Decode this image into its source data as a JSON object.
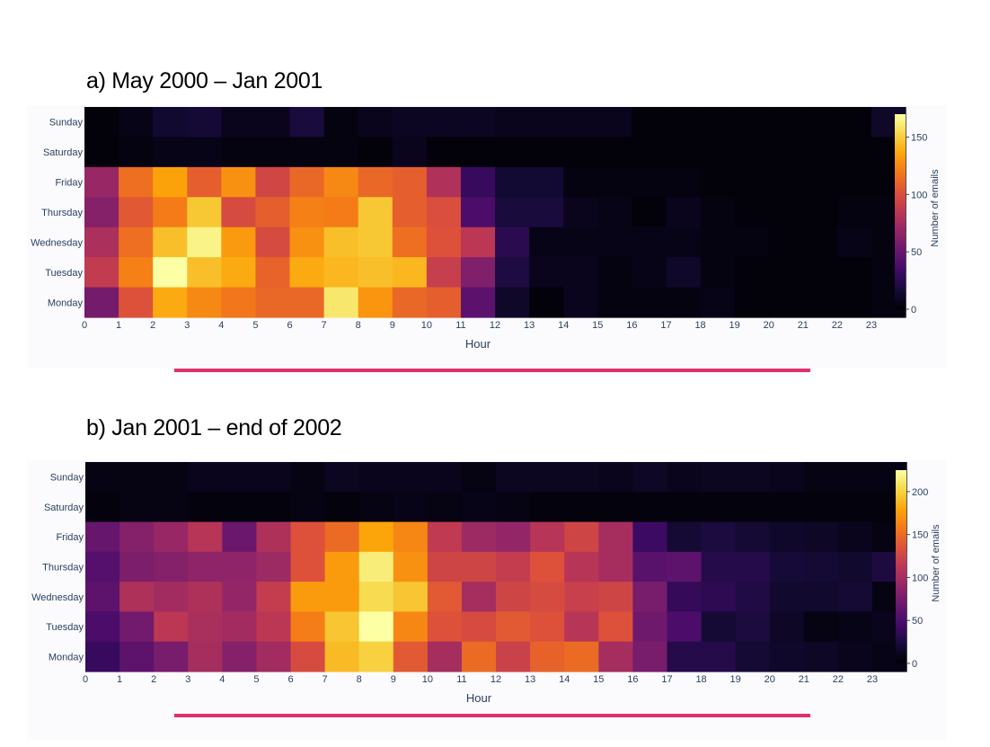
{
  "chart_data": [
    {
      "type": "heatmap",
      "title": "a) May 2000 – Jan 2001",
      "xlabel": "Hour",
      "colorbar_title": "Number of emails",
      "colorscale": "inferno",
      "zmin": 0,
      "zmax": 170,
      "colorbar_ticks": [
        0,
        50,
        100,
        150
      ],
      "x_ticks": [
        "0",
        "1",
        "2",
        "3",
        "4",
        "5",
        "6",
        "7",
        "8",
        "9",
        "10",
        "11",
        "12",
        "13",
        "14",
        "15",
        "16",
        "17",
        "18",
        "19",
        "20",
        "21",
        "22",
        "23"
      ],
      "y_categories": [
        "Sunday",
        "Saturday",
        "Friday",
        "Thursday",
        "Wednesday",
        "Tuesday",
        "Monday"
      ],
      "z": [
        [
          2,
          6,
          14,
          16,
          8,
          8,
          18,
          4,
          8,
          10,
          10,
          10,
          8,
          8,
          8,
          8,
          2,
          2,
          2,
          2,
          2,
          2,
          2,
          12
        ],
        [
          2,
          4,
          6,
          6,
          4,
          4,
          4,
          4,
          2,
          8,
          2,
          2,
          2,
          2,
          2,
          2,
          2,
          2,
          2,
          2,
          2,
          2,
          2,
          2
        ],
        [
          70,
          115,
          135,
          108,
          128,
          95,
          112,
          125,
          112,
          108,
          80,
          30,
          15,
          15,
          4,
          4,
          4,
          4,
          2,
          2,
          2,
          2,
          2,
          2
        ],
        [
          62,
          105,
          120,
          148,
          98,
          108,
          122,
          120,
          148,
          108,
          100,
          38,
          18,
          18,
          8,
          6,
          2,
          8,
          4,
          2,
          2,
          2,
          4,
          4
        ],
        [
          78,
          115,
          145,
          165,
          132,
          98,
          128,
          145,
          148,
          115,
          102,
          85,
          25,
          6,
          6,
          6,
          6,
          6,
          4,
          4,
          2,
          2,
          6,
          4
        ],
        [
          88,
          122,
          170,
          145,
          138,
          110,
          138,
          142,
          145,
          142,
          90,
          60,
          20,
          8,
          8,
          4,
          6,
          12,
          4,
          2,
          2,
          2,
          2,
          4
        ],
        [
          55,
          102,
          138,
          125,
          118,
          112,
          112,
          160,
          130,
          112,
          108,
          45,
          12,
          2,
          8,
          4,
          4,
          4,
          6,
          2,
          2,
          2,
          2,
          4
        ]
      ]
    },
    {
      "type": "heatmap",
      "title": "b) Jan 2001 – end of 2002",
      "xlabel": "Hour",
      "colorbar_title": "Number of emails",
      "colorscale": "inferno",
      "zmin": 0,
      "zmax": 225,
      "colorbar_ticks": [
        0,
        50,
        100,
        150,
        200
      ],
      "x_ticks": [
        "0",
        "1",
        "2",
        "3",
        "4",
        "5",
        "6",
        "7",
        "8",
        "9",
        "10",
        "11",
        "12",
        "13",
        "14",
        "15",
        "16",
        "17",
        "18",
        "19",
        "20",
        "21",
        "22",
        "23"
      ],
      "y_categories": [
        "Sunday",
        "Saturday",
        "Friday",
        "Thursday",
        "Wednesday",
        "Tuesday",
        "Monday"
      ],
      "z": [
        [
          6,
          6,
          6,
          10,
          10,
          10,
          6,
          12,
          10,
          10,
          10,
          6,
          12,
          12,
          12,
          10,
          14,
          10,
          12,
          12,
          10,
          6,
          6,
          6
        ],
        [
          4,
          6,
          6,
          4,
          4,
          4,
          6,
          4,
          6,
          8,
          6,
          8,
          6,
          4,
          4,
          4,
          4,
          4,
          4,
          4,
          4,
          4,
          4,
          4
        ],
        [
          65,
          82,
          92,
          110,
          68,
          105,
          135,
          150,
          180,
          165,
          115,
          95,
          90,
          110,
          125,
          100,
          42,
          20,
          25,
          20,
          16,
          14,
          10,
          6
        ],
        [
          55,
          78,
          82,
          88,
          88,
          95,
          135,
          175,
          215,
          170,
          125,
          125,
          118,
          135,
          110,
          100,
          58,
          60,
          30,
          30,
          22,
          20,
          18,
          26
        ],
        [
          60,
          105,
          98,
          105,
          90,
          118,
          175,
          175,
          205,
          195,
          140,
          100,
          125,
          130,
          120,
          125,
          75,
          38,
          35,
          28,
          18,
          18,
          20,
          6
        ],
        [
          50,
          72,
          112,
          102,
          98,
          112,
          160,
          195,
          225,
          165,
          135,
          130,
          140,
          135,
          110,
          135,
          70,
          50,
          20,
          25,
          14,
          6,
          8,
          10
        ],
        [
          40,
          60,
          75,
          100,
          82,
          98,
          130,
          190,
          200,
          140,
          100,
          150,
          122,
          145,
          150,
          100,
          75,
          30,
          30,
          20,
          16,
          14,
          10,
          8
        ]
      ]
    }
  ]
}
